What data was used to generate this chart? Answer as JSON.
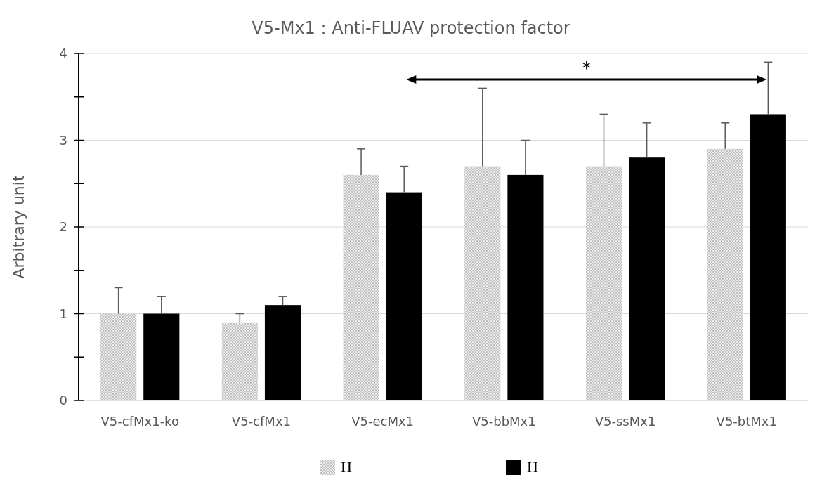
{
  "chart_data": {
    "type": "bar",
    "title": "V5-Mx1 : Anti-FLUAV protection factor",
    "ylabel": "Arbitrary unit",
    "categories": [
      "V5-cfMx1-ko",
      "V5-cfMx1",
      "V5-ecMx1",
      "V5-bbMx1",
      "V5-ssMx1",
      "V5-btMx1"
    ],
    "series": [
      {
        "name": "H",
        "color": "#c0c0c0",
        "values": [
          1.0,
          0.9,
          2.6,
          2.7,
          2.7,
          2.9
        ],
        "errors": [
          [
            1.0,
            1.3
          ],
          [
            0.9,
            1.0
          ],
          [
            2.6,
            2.9
          ],
          [
            2.7,
            3.6
          ],
          [
            2.7,
            3.3
          ],
          [
            2.9,
            3.2
          ]
        ]
      },
      {
        "name": "H",
        "color": "#000000",
        "values": [
          1.0,
          1.1,
          2.4,
          2.6,
          2.8,
          3.3
        ],
        "errors": [
          [
            1.0,
            1.2
          ],
          [
            1.1,
            1.2
          ],
          [
            2.4,
            2.7
          ],
          [
            2.6,
            3.0
          ],
          [
            2.8,
            3.2
          ],
          [
            3.3,
            3.9
          ]
        ]
      }
    ],
    "ylim": [
      0,
      4
    ],
    "yticks": [
      0,
      {
        "value": 0.5,
        "label": null
      },
      1,
      {
        "value": 1.5,
        "label": null
      },
      2,
      {
        "value": 2.5,
        "label": null
      },
      3,
      {
        "value": 3.5,
        "label": null
      },
      4
    ],
    "grid": "y",
    "legend": "bottom",
    "annotations": [
      "*"
    ]
  }
}
